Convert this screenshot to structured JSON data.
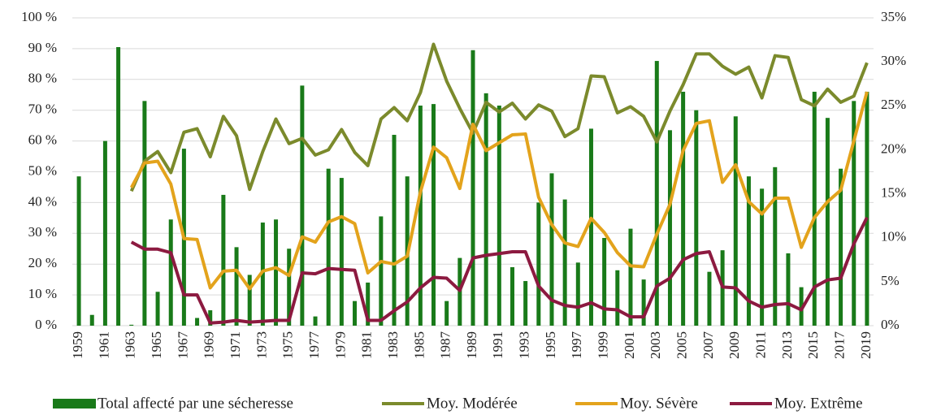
{
  "chart_data": {
    "type": "bar_line",
    "categories": [
      "1959",
      null,
      "1961",
      null,
      "1963",
      null,
      "1965",
      null,
      "1967",
      null,
      "1969",
      null,
      "1971",
      null,
      "1973",
      null,
      "1975",
      null,
      "1977",
      null,
      "1979",
      null,
      "1981",
      null,
      "1983",
      null,
      "1985",
      null,
      "1987",
      null,
      "1989",
      null,
      "1991",
      null,
      "1993",
      null,
      "1995",
      null,
      "1997",
      null,
      "1999",
      null,
      "2001",
      null,
      "2003",
      null,
      "2005",
      null,
      "2007",
      null,
      "2009",
      null,
      "2011",
      null,
      "2013",
      null,
      "2015",
      null,
      "2017",
      null,
      "2019"
    ],
    "series": [
      {
        "name": "Total affecté par une sécheresse",
        "type": "bar",
        "color": "#197a19",
        "values": [
          48.5,
          3.5,
          60,
          90.5,
          0.3,
          73,
          11,
          34.5,
          57.5,
          2.5,
          5,
          42.5,
          25.5,
          16.5,
          33.5,
          34.5,
          25,
          78,
          3,
          51,
          48,
          8,
          14,
          35.5,
          62,
          48.5,
          71.5,
          72,
          8,
          22,
          89.5,
          75.5,
          71.5,
          19,
          14.5,
          40,
          49.5,
          41,
          20.5,
          64,
          28.5,
          18,
          31.5,
          15,
          86,
          63.5,
          76,
          70,
          17.5,
          24.5,
          68,
          48.5,
          44.5,
          51.5,
          23.5,
          12.5,
          76,
          67.5,
          51,
          73,
          76
        ]
      },
      {
        "name": "Moy. Modérée",
        "type": "line",
        "axis": "y2",
        "color": "#7b8a2c",
        "values": [
          null,
          null,
          null,
          null,
          15.3,
          18.7,
          19.8,
          17.4,
          22,
          22.4,
          19.2,
          23.8,
          21.6,
          15.5,
          19.8,
          23.5,
          20.7,
          21.3,
          19.4,
          20,
          22.3,
          19.7,
          18.2,
          23.5,
          24.8,
          23.3,
          26.5,
          32,
          27.8,
          24.7,
          21.9,
          25.4,
          24.3,
          25.3,
          23.5,
          25.1,
          24.4,
          21.5,
          22.4,
          28.4,
          28.3,
          24.2,
          24.9,
          23.8,
          20.9,
          24.4,
          27.4,
          30.9,
          30.9,
          29.5,
          28.6,
          29.4,
          25.9,
          30.7,
          30.5,
          25.7,
          25,
          26.9,
          25.4,
          26.1,
          29.9
        ]
      },
      {
        "name": "Moy. Sévère",
        "type": "line",
        "axis": "y2",
        "color": "#e3a31c",
        "values": [
          null,
          null,
          null,
          null,
          15.7,
          18.5,
          18.7,
          16.1,
          9.9,
          9.8,
          4.3,
          6.2,
          6.3,
          4.2,
          6.2,
          6.6,
          5.7,
          10.1,
          9.5,
          11.8,
          12.4,
          11.6,
          6,
          7.3,
          7,
          7.9,
          15.2,
          20.3,
          19.1,
          15.6,
          22.9,
          19.9,
          20.8,
          21.7,
          21.8,
          14.6,
          11.5,
          9.4,
          9,
          12.2,
          10.6,
          8.3,
          6.8,
          6.7,
          10.4,
          13.8,
          19.9,
          23,
          23.3,
          16.3,
          18.3,
          14.1,
          12.7,
          14.5,
          14.5,
          8.9,
          12.3,
          14.1,
          15.4,
          21,
          26.6
        ]
      },
      {
        "name": "Moy. Extrême",
        "type": "line",
        "axis": "y2",
        "color": "#8c1a40",
        "values": [
          null,
          null,
          null,
          null,
          9.5,
          8.7,
          8.7,
          8.3,
          3.5,
          3.5,
          0.3,
          0.4,
          0.6,
          0.4,
          0.5,
          0.6,
          0.6,
          6,
          5.9,
          6.5,
          6.4,
          6.3,
          0.6,
          0.6,
          1.7,
          2.7,
          4.3,
          5.5,
          5.4,
          4,
          7.7,
          8,
          8.2,
          8.4,
          8.4,
          4.5,
          2.9,
          2.3,
          2.1,
          2.6,
          1.9,
          1.8,
          1,
          1,
          4.5,
          5.4,
          7.5,
          8.2,
          8.4,
          4.4,
          4.3,
          2.8,
          2.1,
          2.4,
          2.5,
          1.8,
          4.4,
          5.2,
          5.4,
          9.3,
          12.3
        ]
      }
    ],
    "ylim": [
      0,
      100
    ],
    "yticks": [
      {
        "value": 0,
        "label": "0 %"
      },
      {
        "value": 10,
        "label": "10 %"
      },
      {
        "value": 20,
        "label": "20 %"
      },
      {
        "value": 30,
        "label": "30 %"
      },
      {
        "value": 40,
        "label": "40 %"
      },
      {
        "value": 50,
        "label": "50 %"
      },
      {
        "value": 60,
        "label": "60 %"
      },
      {
        "value": 70,
        "label": "70 %"
      },
      {
        "value": 80,
        "label": "80 %"
      },
      {
        "value": 90,
        "label": "90 %"
      },
      {
        "value": 100,
        "label": "100 %"
      }
    ],
    "y2lim": [
      0,
      35
    ],
    "y2ticks": [
      {
        "value": 0,
        "label": "0%"
      },
      {
        "value": 5,
        "label": "5%"
      },
      {
        "value": 10,
        "label": "10%"
      },
      {
        "value": 15,
        "label": "15%"
      },
      {
        "value": 20,
        "label": "20%"
      },
      {
        "value": 25,
        "label": "25%"
      },
      {
        "value": 30,
        "label": "30%"
      },
      {
        "value": 35,
        "label": "35%"
      }
    ],
    "grid": true,
    "legend": "bottom"
  }
}
